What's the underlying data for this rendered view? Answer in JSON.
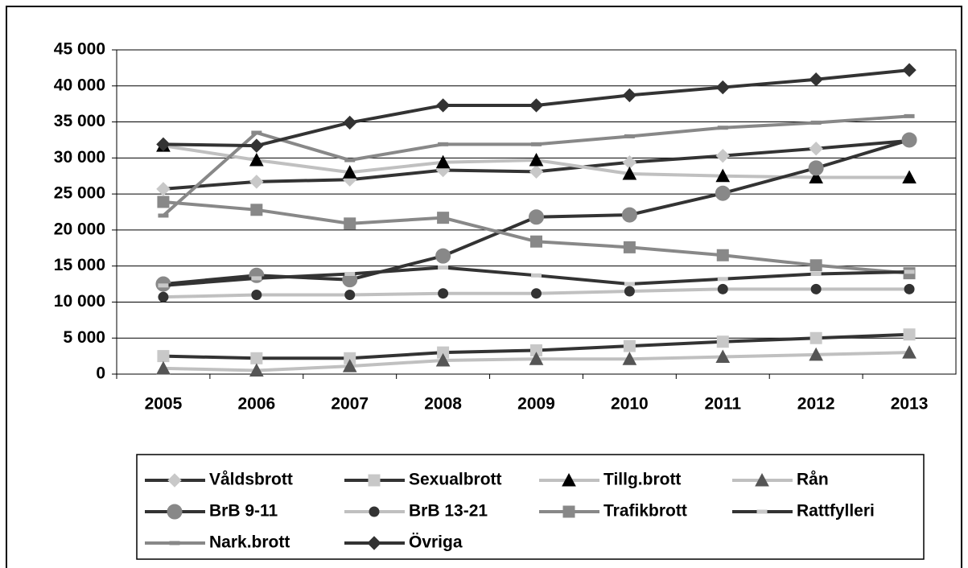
{
  "chart_data": {
    "type": "line",
    "categories": [
      "2005",
      "2006",
      "2007",
      "2008",
      "2009",
      "2010",
      "2011",
      "2012",
      "2013"
    ],
    "ylim": [
      0,
      45000
    ],
    "yticks": [
      0,
      {
        "value": 5000,
        "label": "5 000"
      },
      {
        "value": 10000,
        "label": "10 000"
      },
      {
        "value": 15000,
        "label": "15 000"
      },
      {
        "value": 20000,
        "label": "20 000"
      },
      {
        "value": 25000,
        "label": "25 000"
      },
      {
        "value": 30000,
        "label": "30 000"
      },
      {
        "value": 35000,
        "label": "35 000"
      },
      {
        "value": 40000,
        "label": "40 000"
      },
      {
        "value": 45000,
        "label": "45 000"
      }
    ],
    "grid": true,
    "legend": "bottom",
    "series": [
      {
        "name": "Våldsbrott",
        "color": "#333333",
        "marker": "diamond",
        "marker_color": "#c8c8c8",
        "values": [
          25700,
          26700,
          27000,
          28300,
          28100,
          29400,
          30300,
          31300,
          32400
        ]
      },
      {
        "name": "Sexualbrott",
        "color": "#333333",
        "marker": "square",
        "marker_color": "#c8c8c8",
        "values": [
          2500,
          2200,
          2200,
          3000,
          3300,
          3900,
          4500,
          5000,
          5500
        ]
      },
      {
        "name": "Tillg.brott",
        "color": "#c0c0c0",
        "marker": "triangle",
        "marker_color": "#000000",
        "values": [
          31700,
          29700,
          28000,
          29400,
          29700,
          27800,
          27500,
          27300,
          27300
        ]
      },
      {
        "name": "Rån",
        "color": "#c0c0c0",
        "marker": "triangle",
        "marker_color": "#555555",
        "values": [
          800,
          500,
          1100,
          1900,
          2100,
          2100,
          2400,
          2700,
          3000
        ]
      },
      {
        "name": "BrB 9-11",
        "color": "#333333",
        "marker": "circle",
        "marker_color": "#888888",
        "values": [
          12500,
          13700,
          13100,
          16400,
          21800,
          22100,
          25100,
          28600,
          32500
        ]
      },
      {
        "name": "BrB 13-21",
        "color": "#c0c0c0",
        "marker": "dot",
        "marker_color": "#333333",
        "values": [
          10700,
          11000,
          11000,
          11200,
          11200,
          11500,
          11800,
          11800,
          11800
        ]
      },
      {
        "name": "Trafikbrott",
        "color": "#888888",
        "marker": "square",
        "marker_color": "#888888",
        "values": [
          23900,
          22800,
          20900,
          21700,
          18400,
          17600,
          16500,
          15100,
          14000
        ]
      },
      {
        "name": "Rattfylleri",
        "color": "#333333",
        "marker": "dash",
        "marker_color": "#c8c8c8",
        "values": [
          12300,
          13300,
          13900,
          14800,
          13700,
          12500,
          13200,
          13900,
          14200
        ]
      },
      {
        "name": "Nark.brott",
        "color": "#888888",
        "marker": "dash",
        "marker_color": "#888888",
        "values": [
          22000,
          33500,
          29700,
          31900,
          31900,
          33000,
          34200,
          34900,
          35800
        ]
      },
      {
        "name": "Övriga",
        "color": "#333333",
        "marker": "diamond",
        "marker_color": "#333333",
        "values": [
          31900,
          31700,
          34900,
          37300,
          37300,
          38700,
          39800,
          40900,
          42200
        ]
      }
    ]
  }
}
